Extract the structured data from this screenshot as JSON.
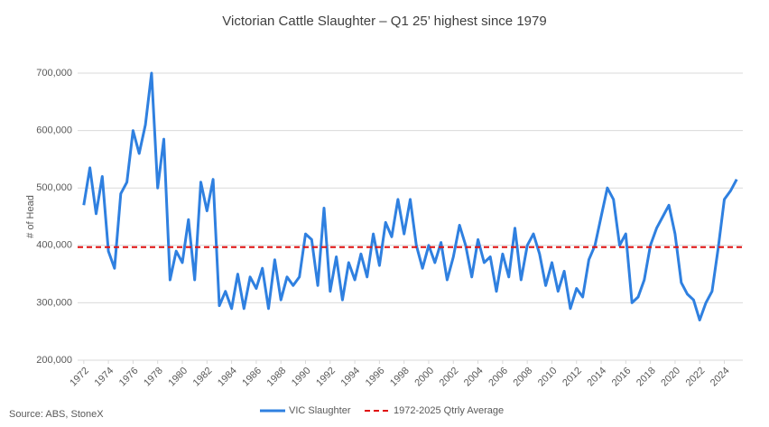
{
  "chart_data": {
    "type": "line",
    "title": "Victorian Cattle Slaughter – Q1 25’ highest since 1979",
    "y_label": "# of Head",
    "source": "Source: ABS, StoneX",
    "x": [
      1972,
      1972.5,
      1973,
      1973.5,
      1974,
      1974.5,
      1975,
      1975.5,
      1976,
      1976.5,
      1977,
      1977.5,
      1978,
      1978.5,
      1979,
      1979.5,
      1980,
      1980.5,
      1981,
      1981.5,
      1982,
      1982.5,
      1983,
      1983.5,
      1984,
      1984.5,
      1985,
      1985.5,
      1986,
      1986.5,
      1987,
      1987.5,
      1988,
      1988.5,
      1989,
      1989.5,
      1990,
      1990.5,
      1991,
      1991.5,
      1992,
      1992.5,
      1993,
      1993.5,
      1994,
      1994.5,
      1995,
      1995.5,
      1996,
      1996.5,
      1997,
      1997.5,
      1998,
      1998.5,
      1999,
      1999.5,
      2000,
      2000.5,
      2001,
      2001.5,
      2002,
      2002.5,
      2003,
      2003.5,
      2004,
      2004.5,
      2005,
      2005.5,
      2006,
      2006.5,
      2007,
      2007.5,
      2008,
      2008.5,
      2009,
      2009.5,
      2010,
      2010.5,
      2011,
      2011.5,
      2012,
      2012.5,
      2013,
      2013.5,
      2014,
      2014.5,
      2015,
      2015.5,
      2016,
      2016.5,
      2017,
      2017.5,
      2018,
      2018.5,
      2019,
      2019.5,
      2020,
      2020.5,
      2021,
      2021.5,
      2022,
      2022.5,
      2023,
      2023.5,
      2024,
      2024.5,
      2025
    ],
    "series": [
      {
        "name": "VIC Slaughter",
        "color": "#2f80e0",
        "values": [
          470000,
          535000,
          455000,
          520000,
          390000,
          360000,
          490000,
          510000,
          600000,
          560000,
          610000,
          700000,
          500000,
          585000,
          340000,
          390000,
          370000,
          445000,
          340000,
          510000,
          460000,
          515000,
          295000,
          320000,
          290000,
          350000,
          290000,
          345000,
          325000,
          360000,
          290000,
          375000,
          305000,
          345000,
          330000,
          345000,
          420000,
          410000,
          330000,
          465000,
          320000,
          380000,
          305000,
          370000,
          340000,
          385000,
          345000,
          420000,
          365000,
          440000,
          415000,
          480000,
          420000,
          480000,
          400000,
          360000,
          400000,
          370000,
          405000,
          340000,
          380000,
          435000,
          400000,
          345000,
          410000,
          370000,
          380000,
          320000,
          385000,
          345000,
          430000,
          340000,
          400000,
          420000,
          385000,
          330000,
          370000,
          320000,
          355000,
          290000,
          325000,
          310000,
          375000,
          400000,
          450000,
          500000,
          480000,
          400000,
          420000,
          300000,
          310000,
          340000,
          400000,
          430000,
          450000,
          470000,
          420000,
          335000,
          315000,
          305000,
          270000,
          300000,
          320000,
          395000,
          480000,
          495000,
          515000
        ]
      }
    ],
    "reference_line": {
      "name": "1972-2025 Qtrly Average",
      "color": "#e01010",
      "value": 397000
    },
    "xlim": [
      1971.5,
      2025.5
    ],
    "xticks": [
      1972,
      1974,
      1976,
      1978,
      1980,
      1982,
      1984,
      1986,
      1988,
      1990,
      1992,
      1994,
      1996,
      1998,
      2000,
      2002,
      2004,
      2006,
      2008,
      2010,
      2012,
      2014,
      2016,
      2018,
      2020,
      2022,
      2024
    ],
    "ylim": [
      200000,
      700000
    ],
    "yticks": [
      {
        "value": 200000,
        "label": "200,000"
      },
      {
        "value": 300000,
        "label": "300,000"
      },
      {
        "value": 400000,
        "label": "400,000"
      },
      {
        "value": 500000,
        "label": "500,000"
      },
      {
        "value": 600000,
        "label": "600,000"
      },
      {
        "value": 700000,
        "label": "700,000"
      }
    ],
    "grid": true
  }
}
